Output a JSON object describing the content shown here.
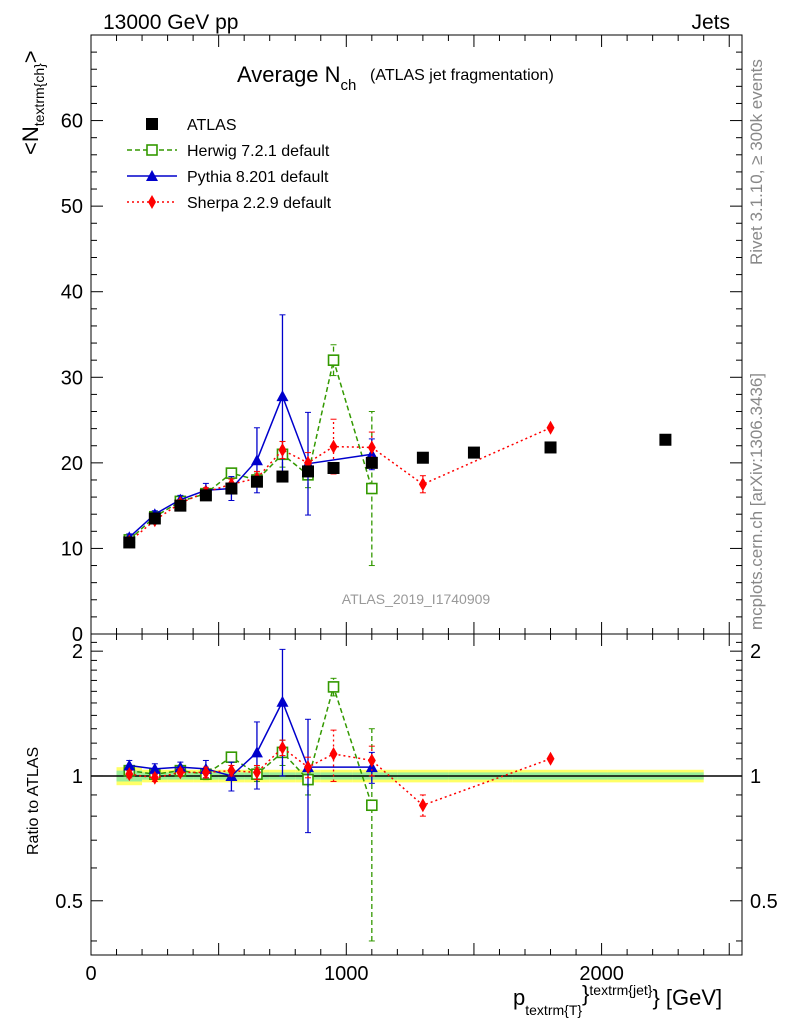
{
  "header": {
    "left": "13000 GeV pp",
    "right": "Jets"
  },
  "side_labels": {
    "rivet": "Rivet 3.1.10, ≥ 300k events",
    "mcplots": "mcplots.cern.ch [arXiv:1306.3436]"
  },
  "analysis_id": "ATLAS_2019_I1740909",
  "chart_data": [
    {
      "type": "scatter",
      "title": "Average N",
      "title_sub": "ch",
      "title_note": "(ATLAS jet fragmentation)",
      "ylabel": "<N",
      "ylabel_sub": "textrm{ch}",
      "ylabel_end": ">",
      "ylim": [
        0,
        70
      ],
      "yticks": [
        0,
        10,
        20,
        30,
        40,
        50,
        60
      ],
      "xlim": [
        0,
        2550
      ],
      "legend_position": "top-left",
      "series": [
        {
          "name": "ATLAS",
          "color": "#000000",
          "marker": "square",
          "line": "none",
          "x": [
            150,
            250,
            350,
            450,
            550,
            650,
            750,
            850,
            950,
            1100,
            1300,
            1500,
            1800,
            2250
          ],
          "y": [
            10.7,
            13.5,
            15.0,
            16.2,
            17.0,
            17.8,
            18.4,
            19.0,
            19.4,
            20.0,
            20.6,
            21.2,
            21.8,
            22.7
          ]
        },
        {
          "name": "Herwig 7.2.1 default",
          "color": "#339900",
          "marker": "open-square",
          "line": "dashed",
          "x": [
            150,
            250,
            350,
            450,
            550,
            650,
            750,
            850,
            950,
            1100
          ],
          "y": [
            11.0,
            13.7,
            15.5,
            16.4,
            18.8,
            18.0,
            21.0,
            18.6,
            32.0,
            17.0
          ],
          "err": [
            0.3,
            0.3,
            0.3,
            0.4,
            0.5,
            0.8,
            1.5,
            1.5,
            1.8,
            9.0
          ]
        },
        {
          "name": "Pythia 8.201 default",
          "color": "#0000cc",
          "marker": "triangle",
          "line": "solid",
          "x": [
            150,
            250,
            350,
            450,
            550,
            650,
            750,
            850,
            1100
          ],
          "y": [
            11.3,
            14.0,
            15.7,
            16.8,
            17.0,
            20.3,
            27.8,
            19.9,
            21.0
          ],
          "err": [
            0.4,
            0.4,
            0.5,
            0.8,
            1.4,
            3.8,
            9.5,
            6.0,
            1.8
          ]
        },
        {
          "name": "Sherpa 2.2.9 default",
          "color": "#ff0000",
          "marker": "diamond",
          "line": "dotted",
          "x": [
            150,
            250,
            350,
            450,
            550,
            650,
            750,
            850,
            950,
            1100,
            1300,
            1800
          ],
          "y": [
            10.8,
            13.3,
            15.3,
            16.6,
            17.5,
            18.2,
            21.5,
            20.0,
            21.9,
            21.8,
            17.5,
            24.1
          ],
          "err": [
            0.3,
            0.3,
            0.4,
            0.5,
            0.6,
            0.8,
            1.0,
            1.2,
            3.2,
            1.8,
            1.0,
            0.0
          ]
        }
      ]
    },
    {
      "type": "scatter",
      "ylabel": "Ratio to ATLAS",
      "ylim": [
        0.37,
        2.2
      ],
      "yticks": [
        0.5,
        1,
        2
      ],
      "ytick_labels": [
        "0.5",
        "1",
        "2"
      ],
      "xlim": [
        0,
        2550
      ],
      "xticks": [
        0,
        1000,
        2000
      ],
      "xtick_labels": [
        "0",
        "1000",
        "2000"
      ],
      "xlabel": "p",
      "xlabel_sub": "textrm{T}",
      "xlabel_sup": "textrm{jet}",
      "xlabel_unit": "} [GeV]",
      "series": [
        {
          "name": "Herwig 7.2.1 default",
          "color": "#339900",
          "x": [
            150,
            250,
            350,
            450,
            550,
            650,
            750,
            850,
            950,
            1100
          ],
          "y": [
            1.03,
            1.01,
            1.03,
            1.01,
            1.11,
            1.01,
            1.14,
            0.98,
            1.64,
            0.85
          ],
          "err": [
            0.02,
            0.02,
            0.02,
            0.03,
            0.03,
            0.04,
            0.08,
            0.08,
            0.08,
            0.45
          ]
        },
        {
          "name": "Pythia 8.201 default",
          "color": "#0000cc",
          "x": [
            150,
            250,
            350,
            450,
            550,
            650,
            750,
            850,
            1100
          ],
          "y": [
            1.06,
            1.04,
            1.05,
            1.04,
            1.0,
            1.14,
            1.51,
            1.05,
            1.05
          ],
          "err": [
            0.03,
            0.03,
            0.03,
            0.05,
            0.08,
            0.21,
            0.51,
            0.32,
            0.09
          ]
        },
        {
          "name": "Sherpa 2.2.9 default",
          "color": "#ff0000",
          "x": [
            150,
            250,
            350,
            450,
            550,
            650,
            750,
            850,
            950,
            1100,
            1300,
            1800
          ],
          "y": [
            1.01,
            0.99,
            1.02,
            1.02,
            1.03,
            1.02,
            1.17,
            1.05,
            1.13,
            1.09,
            0.85,
            1.1
          ],
          "err": [
            0.02,
            0.02,
            0.02,
            0.03,
            0.03,
            0.04,
            0.05,
            0.06,
            0.16,
            0.09,
            0.05,
            0.0
          ]
        }
      ]
    }
  ]
}
